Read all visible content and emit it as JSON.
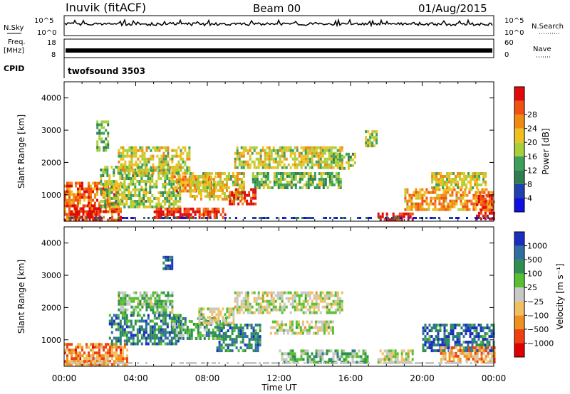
{
  "header": {
    "station": "Inuvik (fitACF)",
    "beam": "Beam 00",
    "date": "01/Aug/2015"
  },
  "top_panels": {
    "nsky_label": "N.Sky",
    "nsky_ticks": [
      "10^5",
      "10^0"
    ],
    "nsearch_label": "N.Search",
    "nsearch_ticks": [
      "10^5",
      "10^0"
    ],
    "freq_label_1": "Freq.",
    "freq_label_2": "[MHz]",
    "freq_ticks": [
      "18",
      "8"
    ],
    "nave_label": "Nave",
    "nave_ticks": [
      "60",
      "0"
    ],
    "cpid_label": "CPID",
    "cpid_value": "twofsound 3503"
  },
  "colors": {
    "power_scale": [
      "#1010e0",
      "#2040b0",
      "#2e7f50",
      "#3aa05a",
      "#a8cf3a",
      "#f0c020",
      "#f08a10",
      "#f05010",
      "#e00a0a"
    ],
    "velocity_scale": [
      "#e00000",
      "#f04010",
      "#f09020",
      "#f0c060",
      "#c8c8c8",
      "#58c030",
      "#2e8f50",
      "#2e6fa0",
      "#1a2fc0"
    ]
  },
  "chart_data": [
    {
      "type": "heatmap",
      "name": "power",
      "ylabel": "Slant Range [km]",
      "yticks": [
        "1000",
        "2000",
        "3000",
        "4000"
      ],
      "ylim": [
        180,
        4500
      ],
      "xlim_hours": [
        0,
        24
      ],
      "colorbar_label": "Power [dB]",
      "colorbar_ticks": [
        "4",
        "8",
        "12",
        "16",
        "20",
        "24",
        "28"
      ],
      "colorbar_range": [
        0,
        32
      ],
      "regions": [
        {
          "t0": 0.0,
          "t1": 3.2,
          "r0": 250,
          "r1": 1400,
          "level": 0.78
        },
        {
          "t0": 0.3,
          "t1": 2.0,
          "r0": 250,
          "r1": 700,
          "level": 0.95
        },
        {
          "t0": 2.0,
          "t1": 6.5,
          "r0": 650,
          "r1": 1900,
          "level": 0.48
        },
        {
          "t0": 3.0,
          "t1": 7.0,
          "r0": 1700,
          "r1": 2500,
          "level": 0.55
        },
        {
          "t0": 5.0,
          "t1": 9.0,
          "r0": 300,
          "r1": 600,
          "level": 0.9
        },
        {
          "t0": 6.0,
          "t1": 8.5,
          "r0": 1100,
          "r1": 1600,
          "level": 0.72
        },
        {
          "t0": 7.0,
          "t1": 10.0,
          "r0": 900,
          "r1": 1700,
          "level": 0.6
        },
        {
          "t0": 9.2,
          "t1": 10.7,
          "r0": 700,
          "r1": 1200,
          "level": 0.88
        },
        {
          "t0": 10.5,
          "t1": 15.5,
          "r0": 1200,
          "r1": 1700,
          "level": 0.42
        },
        {
          "t0": 9.5,
          "t1": 15.5,
          "r0": 1800,
          "r1": 2500,
          "level": 0.56
        },
        {
          "t0": 15.0,
          "t1": 16.2,
          "r0": 1800,
          "r1": 2300,
          "level": 0.45
        },
        {
          "t0": 17.5,
          "t1": 19.5,
          "r0": 250,
          "r1": 450,
          "level": 0.95
        },
        {
          "t0": 19.0,
          "t1": 24.0,
          "r0": 500,
          "r1": 1200,
          "level": 0.7
        },
        {
          "t0": 20.5,
          "t1": 23.5,
          "r0": 1200,
          "r1": 1700,
          "level": 0.55
        },
        {
          "t0": 23.0,
          "t1": 24.0,
          "r0": 250,
          "r1": 1000,
          "level": 0.92
        },
        {
          "t0": 1.8,
          "t1": 2.5,
          "r0": 2400,
          "r1": 3300,
          "level": 0.4
        },
        {
          "t0": 16.8,
          "t1": 17.4,
          "r0": 2500,
          "r1": 3000,
          "level": 0.5
        }
      ]
    },
    {
      "type": "heatmap",
      "name": "velocity",
      "ylabel": "Slant Range [km]",
      "yticks": [
        "1000",
        "2000",
        "3000",
        "4000"
      ],
      "ylim": [
        180,
        4500
      ],
      "xlim_hours": [
        0,
        24
      ],
      "xlabel": "Time UT",
      "xticks": [
        "00:00",
        "04:00",
        "08:00",
        "12:00",
        "16:00",
        "20:00",
        "00:00"
      ],
      "colorbar_label": "Velocity [m s⁻¹]",
      "colorbar_ticks": [
        "1000",
        "500",
        "100",
        "25",
        "−25",
        "−100",
        "−500",
        "−1000"
      ],
      "regions": [
        {
          "t0": 0.0,
          "t1": 3.5,
          "r0": 250,
          "r1": 900,
          "level": 0.28
        },
        {
          "t0": 0.5,
          "t1": 2.5,
          "r0": 250,
          "r1": 550,
          "level": 0.3
        },
        {
          "t0": 2.5,
          "t1": 6.5,
          "r0": 900,
          "r1": 1800,
          "level": 0.78
        },
        {
          "t0": 3.0,
          "t1": 6.0,
          "r0": 1800,
          "r1": 2500,
          "level": 0.6
        },
        {
          "t0": 6.0,
          "t1": 9.0,
          "r0": 1000,
          "r1": 1700,
          "level": 0.65
        },
        {
          "t0": 7.5,
          "t1": 9.5,
          "r0": 1500,
          "r1": 2000,
          "level": 0.5
        },
        {
          "t0": 8.5,
          "t1": 11.0,
          "r0": 700,
          "r1": 1500,
          "level": 0.77
        },
        {
          "t0": 9.5,
          "t1": 15.5,
          "r0": 1800,
          "r1": 2500,
          "level": 0.5
        },
        {
          "t0": 11.5,
          "t1": 15.0,
          "r0": 1200,
          "r1": 1600,
          "level": 0.5
        },
        {
          "t0": 12.0,
          "t1": 17.0,
          "r0": 300,
          "r1": 700,
          "level": 0.62
        },
        {
          "t0": 17.5,
          "t1": 19.5,
          "r0": 300,
          "r1": 700,
          "level": 0.5
        },
        {
          "t0": 20.0,
          "t1": 24.0,
          "r0": 700,
          "r1": 1500,
          "level": 0.82
        },
        {
          "t0": 21.0,
          "t1": 24.0,
          "r0": 300,
          "r1": 800,
          "level": 0.3
        },
        {
          "t0": 5.5,
          "t1": 6.0,
          "r0": 3200,
          "r1": 3600,
          "level": 0.9
        }
      ]
    }
  ]
}
